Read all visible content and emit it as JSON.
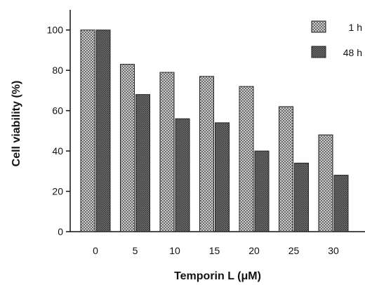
{
  "chart_data": {
    "type": "bar",
    "xlabel": "Temporin L (μM)",
    "ylabel": "Cell viability (%)",
    "categories": [
      "0",
      "5",
      "10",
      "15",
      "20",
      "25",
      "30"
    ],
    "series": [
      {
        "name": "1 h",
        "values": [
          100,
          83,
          79,
          77,
          72,
          62,
          48
        ],
        "pattern": "crosshatch",
        "color": "#c8c8c8"
      },
      {
        "name": "48 h",
        "values": [
          100,
          68,
          56,
          54,
          40,
          34,
          28
        ],
        "pattern": "dense-grey",
        "color": "#6e6e6e"
      }
    ],
    "ylim": [
      0,
      110
    ],
    "yticks": [
      0,
      20,
      40,
      60,
      80,
      100
    ],
    "legend_position": "top-right",
    "grid": false
  }
}
